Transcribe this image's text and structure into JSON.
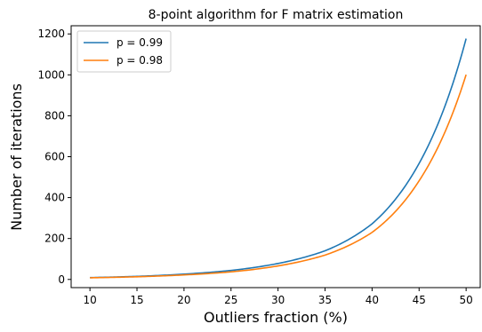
{
  "chart_data": {
    "type": "line",
    "title": "8-point algorithm for F matrix estimation",
    "xlabel": "Outliers fraction (%)",
    "ylabel": "Number of iterations",
    "xlim": [
      8,
      51.5
    ],
    "ylim": [
      -40,
      1240
    ],
    "xticks": [
      10,
      15,
      20,
      25,
      30,
      35,
      40,
      45,
      50
    ],
    "yticks": [
      0,
      200,
      400,
      600,
      800,
      1000,
      1200
    ],
    "x": [
      10,
      15,
      20,
      25,
      30,
      35,
      40,
      45,
      50
    ],
    "series": [
      {
        "name": "p = 0.99",
        "color": "#1f77b4",
        "values": [
          9,
          15,
          26,
          44,
          78,
          140,
          272,
          567,
          1177
        ]
      },
      {
        "name": "p = 0.98",
        "color": "#ff7f0e",
        "values": [
          8,
          13,
          22,
          37,
          66,
          119,
          230,
          482,
          1001
        ]
      }
    ],
    "legend_position": "top-left",
    "grid": false
  }
}
